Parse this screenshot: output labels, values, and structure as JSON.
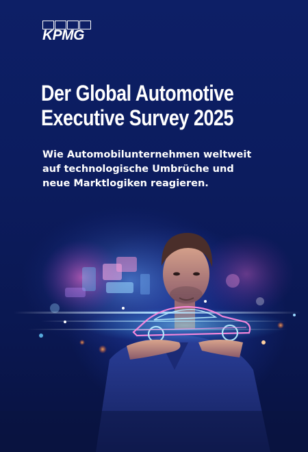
{
  "brand": {
    "logo_text": "KPMG"
  },
  "headline": {
    "line1": "Der Global Automotive",
    "line2": "Executive Survey 2025"
  },
  "subtitle": {
    "line1": "Wie Automobilunternehmen weltweit",
    "line2": "auf technologische Umbrüche und",
    "line3": "neue Marktlogiken reagieren."
  },
  "colors": {
    "background": "#0c1c5e",
    "text": "#ffffff",
    "accent_glow": "#3cc8ff",
    "accent_warm": "#ff8a3c"
  },
  "image": {
    "icon": "person-holding-holographic-car"
  }
}
